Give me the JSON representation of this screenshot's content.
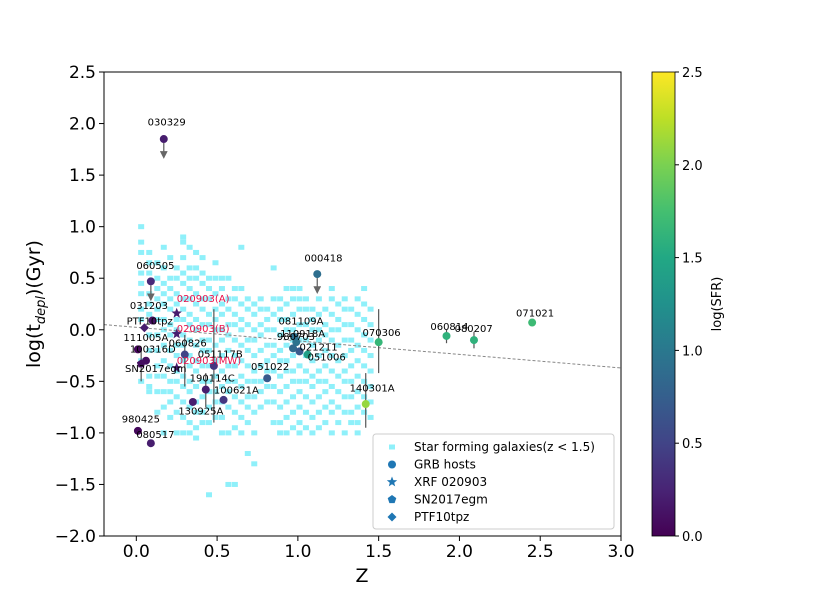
{
  "chart_data": {
    "type": "scatter",
    "xlabel": "Z",
    "ylabel": "log(t_depl)(Gyr)",
    "ylabel_main": "log(t",
    "ylabel_sub": "depl",
    "ylabel_tail": ")(Gyr)",
    "xlim": [
      -0.2,
      3.0
    ],
    "ylim": [
      -2.0,
      2.5
    ],
    "xticks": [
      0.0,
      0.5,
      1.0,
      1.5,
      2.0,
      2.5,
      3.0
    ],
    "xtick_labels": [
      "0.0",
      "0.5",
      "1.0",
      "1.5",
      "2.0",
      "2.5",
      "3.0"
    ],
    "yticks": [
      -2.0,
      -1.5,
      -1.0,
      -0.5,
      0.0,
      0.5,
      1.0,
      1.5,
      2.0,
      2.5
    ],
    "ytick_labels": [
      "−2.0",
      "−1.5",
      "−1.0",
      "−0.5",
      "0.0",
      "0.5",
      "1.0",
      "1.5",
      "2.0",
      "2.5"
    ],
    "colorbar": {
      "label": "log(SFR)",
      "range": [
        0.0,
        2.5
      ],
      "ticks": [
        0.0,
        0.5,
        1.0,
        1.5,
        2.0,
        2.5
      ],
      "tick_labels": [
        "0.0",
        "0.5",
        "1.0",
        "1.5",
        "2.0",
        "2.5"
      ],
      "colormap": "viridis"
    },
    "trend_line": {
      "x": [
        -0.2,
        3.0
      ],
      "y": [
        0.05,
        -0.37
      ],
      "color": "#888888"
    },
    "background_color": "#8ff0fa",
    "legend": {
      "location": "lower-right",
      "entries": [
        {
          "label": "Star forming galaxies(z < 1.5)",
          "marker": "square",
          "color": "#8ff0fa"
        },
        {
          "label": "GRB hosts",
          "marker": "circle",
          "color": "#1f77b4"
        },
        {
          "label": "XRF 020903",
          "marker": "star",
          "color": "#1f77b4"
        },
        {
          "label": "SN2017egm",
          "marker": "pentagon",
          "color": "#1f77b4"
        },
        {
          "label": "PTF10tpz",
          "marker": "diamond",
          "color": "#1f77b4"
        }
      ]
    },
    "grb_points": [
      {
        "name": "030329",
        "x": 0.17,
        "y": 1.85,
        "sfr": 0.2,
        "marker": "circle",
        "arrow": "down",
        "lx": 0.07,
        "ly": 1.98
      },
      {
        "name": "060505",
        "x": 0.09,
        "y": 0.47,
        "sfr": 0.3,
        "marker": "circle",
        "arrow": "down",
        "lx": 0.0,
        "ly": 0.59
      },
      {
        "name": "000418",
        "x": 1.12,
        "y": 0.54,
        "sfr": 0.9,
        "marker": "circle",
        "arrow": "down",
        "lx": 1.04,
        "ly": 0.66
      },
      {
        "name": "031203",
        "x": 0.1,
        "y": 0.09,
        "sfr": 0.1,
        "marker": "circle",
        "lx": -0.04,
        "ly": 0.2
      },
      {
        "name": "020903(A)",
        "x": 0.25,
        "y": 0.16,
        "sfr": 0.2,
        "marker": "star",
        "red": true,
        "lx": 0.25,
        "ly": 0.27
      },
      {
        "name": "PTF10tpz",
        "x": 0.05,
        "y": 0.02,
        "sfr": 0.2,
        "marker": "diamond",
        "lx": -0.06,
        "ly": 0.05
      },
      {
        "name": "020903(B)",
        "x": 0.25,
        "y": -0.04,
        "sfr": 0.2,
        "marker": "star",
        "red": true,
        "lx": 0.25,
        "ly": -0.02
      },
      {
        "name": "111005A",
        "x": 0.01,
        "y": -0.19,
        "sfr": 0.05,
        "marker": "circle",
        "lx": -0.08,
        "ly": -0.11
      },
      {
        "name": "100316D",
        "x": 0.06,
        "y": -0.3,
        "sfr": 0.1,
        "marker": "circle",
        "lx": -0.04,
        "ly": -0.22
      },
      {
        "name": "060826",
        "x": 0.3,
        "y": -0.24,
        "sfr": 0.5,
        "marker": "circle",
        "lx": 0.2,
        "ly": -0.16
      },
      {
        "name": "051117B",
        "x": 0.48,
        "y": -0.35,
        "sfr": 0.4,
        "marker": "circle",
        "lx": 0.38,
        "ly": -0.27
      },
      {
        "name": "SN2017egm",
        "x": 0.03,
        "y": -0.33,
        "sfr": 0.1,
        "marker": "pentagon",
        "lx": -0.07,
        "ly": -0.41
      },
      {
        "name": "020903(MW)",
        "x": 0.25,
        "y": -0.37,
        "sfr": 0.2,
        "marker": "star",
        "red": true,
        "lx": 0.25,
        "ly": -0.33
      },
      {
        "name": "190114C",
        "x": 0.43,
        "y": -0.58,
        "sfr": 0.2,
        "marker": "circle",
        "lx": 0.33,
        "ly": -0.5
      },
      {
        "name": "051022",
        "x": 0.81,
        "y": -0.47,
        "sfr": 0.7,
        "marker": "circle",
        "lx": 0.71,
        "ly": -0.39
      },
      {
        "name": "100621A",
        "x": 0.54,
        "y": -0.68,
        "sfr": 0.4,
        "marker": "circle",
        "lx": 0.48,
        "ly": -0.62
      },
      {
        "name": "130925A",
        "x": 0.35,
        "y": -0.7,
        "sfr": 0.2,
        "marker": "circle",
        "lx": 0.26,
        "ly": -0.82
      },
      {
        "name": "980425",
        "x": 0.01,
        "y": -0.98,
        "sfr": 0.05,
        "marker": "circle",
        "lx": -0.09,
        "ly": -0.9
      },
      {
        "name": "080517",
        "x": 0.09,
        "y": -1.1,
        "sfr": 0.2,
        "marker": "circle",
        "lx": 0.0,
        "ly": -1.05
      },
      {
        "name": "081109A",
        "x": 0.98,
        "y": -0.07,
        "sfr": 0.9,
        "marker": "circle",
        "lx": 0.88,
        "ly": 0.05
      },
      {
        "name": "110918A",
        "x": 0.99,
        "y": -0.12,
        "sfr": 0.95,
        "marker": "circle",
        "lx": 0.89,
        "ly": -0.07
      },
      {
        "name": "980703",
        "x": 0.97,
        "y": -0.18,
        "sfr": 0.85,
        "marker": "circle",
        "lx": 0.87,
        "ly": -0.1
      },
      {
        "name": "021211",
        "x": 1.01,
        "y": -0.21,
        "sfr": 0.7,
        "marker": "circle",
        "lx": 1.01,
        "ly": -0.2
      },
      {
        "name": "051006",
        "x": 1.06,
        "y": -0.24,
        "sfr": 1.4,
        "marker": "circle",
        "lx": 1.06,
        "ly": -0.3
      },
      {
        "name": "070306",
        "x": 1.5,
        "y": -0.12,
        "sfr": 1.65,
        "marker": "circle",
        "lx": 1.4,
        "ly": -0.06
      },
      {
        "name": "140301A",
        "x": 1.42,
        "y": -0.72,
        "sfr": 2.1,
        "marker": "circle",
        "lx": 1.32,
        "ly": -0.6
      },
      {
        "name": "060814",
        "x": 1.92,
        "y": -0.06,
        "sfr": 1.6,
        "marker": "circle",
        "lx": 1.82,
        "ly": 0.0
      },
      {
        "name": "080207",
        "x": 2.09,
        "y": -0.1,
        "sfr": 1.6,
        "marker": "circle",
        "lx": 1.97,
        "ly": -0.02
      },
      {
        "name": "071021",
        "x": 2.45,
        "y": 0.07,
        "sfr": 1.7,
        "marker": "circle",
        "lx": 2.35,
        "ly": 0.13
      }
    ],
    "errorbars": [
      {
        "x": 0.3,
        "y0": -0.55,
        "y1": -0.05
      },
      {
        "x": 0.48,
        "y0": -0.9,
        "y1": 0.2
      },
      {
        "x": 1.5,
        "y0": -0.42,
        "y1": 0.2
      },
      {
        "x": 1.42,
        "y0": -0.95,
        "y1": -0.42
      },
      {
        "x": 1.92,
        "y0": -0.13,
        "y1": 0.0
      },
      {
        "x": 2.09,
        "y0": -0.18,
        "y1": -0.02
      },
      {
        "x": 0.43,
        "y0": -0.75,
        "y1": -0.42
      },
      {
        "x": 0.03,
        "y0": -0.5,
        "y1": -0.2
      }
    ],
    "star_forming_galaxies": {
      "columns": [
        {
          "x": 0.03,
          "ys": [
            1.0,
            0.85,
            0.75,
            0.55,
            0.45,
            0.35,
            0.2,
            0.1,
            -0.3,
            -0.5
          ]
        },
        {
          "x": 0.08,
          "ys": [
            0.75,
            0.65,
            0.55,
            0.35,
            0.25,
            0.15,
            -0.05,
            -0.2,
            -0.45,
            -0.55,
            -0.6
          ]
        },
        {
          "x": 0.13,
          "ys": [
            0.65,
            0.5,
            0.4,
            0.3,
            0.2,
            0.1,
            -0.05,
            -0.2,
            -0.35,
            -0.45,
            -0.6,
            -0.8
          ]
        },
        {
          "x": 0.17,
          "ys": [
            0.8,
            0.6,
            0.45,
            0.35,
            0.25,
            0.1,
            0.0,
            -0.15,
            -0.3,
            -0.45,
            -0.6,
            -0.75,
            -1.0
          ]
        },
        {
          "x": 0.21,
          "ys": [
            0.7,
            0.5,
            0.4,
            0.3,
            0.2,
            0.05,
            -0.05,
            -0.2,
            -0.35,
            -0.5,
            -0.6,
            -0.7,
            -0.85
          ]
        },
        {
          "x": 0.25,
          "ys": [
            0.6,
            0.5,
            0.35,
            0.25,
            0.1,
            0.0,
            -0.15,
            -0.25,
            -0.4,
            -0.5,
            -0.65,
            -0.8,
            -1.0
          ]
        },
        {
          "x": 0.29,
          "ys": [
            0.9,
            0.85,
            0.7,
            0.55,
            0.45,
            0.3,
            0.2,
            0.1,
            -0.05,
            -0.15,
            -0.3,
            -0.45,
            -0.55,
            -0.7,
            -0.85,
            -1.0
          ]
        },
        {
          "x": 0.33,
          "ys": [
            0.8,
            0.6,
            0.5,
            0.4,
            0.3,
            0.15,
            0.05,
            -0.1,
            -0.25,
            -0.35,
            -0.5,
            -0.6,
            -0.75,
            -0.9,
            -1.0
          ]
        },
        {
          "x": 0.37,
          "ys": [
            0.75,
            0.6,
            0.5,
            0.35,
            0.25,
            0.1,
            0.0,
            -0.15,
            -0.3,
            -0.4,
            -0.55,
            -0.7,
            -0.8,
            -0.95,
            -1.05
          ]
        },
        {
          "x": 0.41,
          "ys": [
            0.7,
            0.55,
            0.45,
            0.3,
            0.2,
            0.05,
            -0.1,
            -0.2,
            -0.35,
            -0.5,
            -0.65,
            -0.8,
            -0.9
          ]
        },
        {
          "x": 0.45,
          "ys": [
            0.5,
            0.4,
            0.3,
            0.15,
            0.05,
            -0.1,
            -0.2,
            -0.35,
            -0.5,
            -0.6,
            -0.75,
            -0.9,
            -1.6
          ]
        },
        {
          "x": 0.49,
          "ys": [
            0.65,
            0.5,
            0.35,
            0.2,
            0.1,
            0.0,
            -0.15,
            -0.3,
            -0.45,
            -0.6,
            -0.7,
            -0.85
          ]
        },
        {
          "x": 0.53,
          "ys": [
            0.5,
            0.4,
            0.25,
            0.15,
            0.0,
            -0.1,
            -0.25,
            -0.4,
            -0.55,
            -0.7,
            -0.85,
            -1.0
          ]
        },
        {
          "x": 0.57,
          "ys": [
            0.5,
            0.3,
            0.2,
            0.05,
            -0.05,
            -0.2,
            -0.35,
            -0.5,
            -0.6,
            -0.75,
            -1.0,
            -1.5
          ]
        },
        {
          "x": 0.61,
          "ys": [
            0.4,
            0.3,
            0.15,
            0.05,
            -0.1,
            -0.25,
            -0.35,
            -0.5,
            -0.65,
            -0.8,
            -0.95,
            -1.5
          ]
        },
        {
          "x": 0.65,
          "ys": [
            0.8,
            0.4,
            0.25,
            0.1,
            0.0,
            -0.15,
            -0.3,
            -0.45,
            -0.55,
            -0.7,
            -0.85,
            -1.0
          ]
        },
        {
          "x": 0.69,
          "ys": [
            0.3,
            0.2,
            0.05,
            -0.1,
            -0.2,
            -0.35,
            -0.5,
            -0.65,
            -0.75,
            -0.9,
            -1.2
          ]
        },
        {
          "x": 0.73,
          "ys": [
            0.25,
            0.15,
            0.0,
            -0.1,
            -0.25,
            -0.4,
            -0.5,
            -0.65,
            -0.8,
            -1.0,
            -1.3
          ]
        },
        {
          "x": 0.77,
          "ys": [
            0.3,
            0.2,
            0.05,
            -0.05,
            -0.2,
            -0.35,
            -0.5,
            -0.6,
            -0.75
          ]
        },
        {
          "x": 0.81,
          "ys": [
            0.2,
            0.1,
            0.0,
            -0.15,
            -0.3,
            -0.4,
            -0.55,
            -0.7
          ]
        },
        {
          "x": 0.85,
          "ys": [
            0.6,
            0.3,
            0.15,
            0.0,
            -0.15,
            -0.25,
            -0.4,
            -0.55,
            -0.7,
            -0.9
          ]
        },
        {
          "x": 0.89,
          "ys": [
            0.3,
            0.2,
            0.1,
            -0.05,
            -0.2,
            -0.3,
            -0.45,
            -0.6,
            -0.75,
            -0.9,
            -1.0
          ]
        },
        {
          "x": 0.93,
          "ys": [
            0.4,
            0.25,
            0.1,
            0.0,
            -0.15,
            -0.3,
            -0.4,
            -0.55,
            -0.7,
            -0.85,
            -1.0
          ]
        },
        {
          "x": 0.97,
          "ys": [
            0.4,
            0.3,
            0.15,
            0.0,
            -0.1,
            -0.25,
            -0.4,
            -0.5,
            -0.65,
            -0.8,
            -0.95
          ]
        },
        {
          "x": 1.01,
          "ys": [
            0.4,
            0.3,
            0.2,
            0.05,
            -0.1,
            -0.2,
            -0.35,
            -0.5,
            -0.6,
            -0.75,
            -0.9,
            -1.0
          ]
        },
        {
          "x": 1.05,
          "ys": [
            0.3,
            0.2,
            0.05,
            -0.1,
            -0.25,
            -0.4,
            -0.5,
            -0.65,
            -0.8,
            -0.95
          ]
        },
        {
          "x": 1.09,
          "ys": [
            0.2,
            0.1,
            0.0,
            -0.15,
            -0.3,
            -0.45,
            -0.55,
            -0.7,
            -0.85,
            -1.0
          ]
        },
        {
          "x": 1.13,
          "ys": [
            0.3,
            0.15,
            0.0,
            -0.1,
            -0.25,
            -0.4,
            -0.5,
            -0.65,
            -0.8,
            -0.95
          ]
        },
        {
          "x": 1.17,
          "ys": [
            0.2,
            0.05,
            -0.05,
            -0.2,
            -0.35,
            -0.5,
            -0.6,
            -0.75,
            -0.9
          ]
        },
        {
          "x": 1.21,
          "ys": [
            0.4,
            0.3,
            0.15,
            0.0,
            -0.1,
            -0.25,
            -0.4,
            -0.55,
            -0.7,
            -0.8,
            -1.0
          ]
        },
        {
          "x": 1.25,
          "ys": [
            0.25,
            0.1,
            0.0,
            -0.15,
            -0.3,
            -0.45,
            -0.6,
            -0.75,
            -0.9
          ]
        },
        {
          "x": 1.29,
          "ys": [
            0.3,
            0.2,
            0.05,
            -0.1,
            -0.25,
            -0.4,
            -0.5,
            -0.65,
            -0.8,
            -1.0
          ]
        },
        {
          "x": 1.33,
          "ys": [
            0.2,
            0.05,
            -0.1,
            -0.2,
            -0.35,
            -0.5,
            -0.65,
            -0.8,
            -0.9
          ]
        },
        {
          "x": 1.37,
          "ys": [
            0.3,
            0.15,
            0.0,
            -0.15,
            -0.3,
            -0.45,
            -0.6,
            -0.75,
            -0.9,
            -1.0
          ]
        },
        {
          "x": 1.41,
          "ys": [
            0.4,
            0.25,
            0.1,
            -0.05,
            -0.2,
            -0.35,
            -0.5,
            -0.65,
            -0.8
          ]
        },
        {
          "x": 1.45,
          "ys": [
            0.2,
            0.05,
            -0.1,
            -0.25,
            -0.4,
            -0.55,
            -0.7,
            -0.85
          ]
        }
      ]
    }
  }
}
